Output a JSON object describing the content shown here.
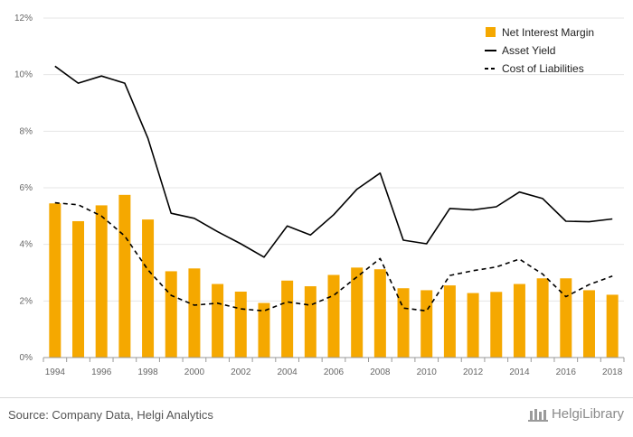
{
  "chart_data": {
    "type": "bar+line",
    "x": [
      1994,
      1995,
      1996,
      1997,
      1998,
      1999,
      2000,
      2001,
      2002,
      2003,
      2004,
      2005,
      2006,
      2007,
      2008,
      2009,
      2010,
      2011,
      2012,
      2013,
      2014,
      2015,
      2016,
      2017,
      2018
    ],
    "x_tick_labels": [
      "1994",
      "1996",
      "1998",
      "2000",
      "2002",
      "2004",
      "2006",
      "2008",
      "2010",
      "2012",
      "2014",
      "2016",
      "2018"
    ],
    "y_tick_labels": [
      "0%",
      "2%",
      "4%",
      "6%",
      "8%",
      "10%",
      "12%"
    ],
    "ylim": [
      0,
      12
    ],
    "grid": "horizontal",
    "legend_position": "top-right",
    "series": [
      {
        "name": "Net Interest Margin",
        "kind": "bar",
        "color": "#f5a800",
        "values": [
          5.45,
          4.82,
          5.38,
          5.75,
          4.88,
          3.05,
          3.15,
          2.6,
          2.33,
          1.93,
          2.72,
          2.52,
          2.92,
          3.18,
          3.12,
          2.45,
          2.38,
          2.55,
          2.28,
          2.32,
          2.6,
          2.8,
          2.8,
          2.38,
          2.22
        ]
      },
      {
        "name": "Asset Yield",
        "kind": "line",
        "color": "#000000",
        "dash": "solid",
        "values": [
          10.3,
          9.7,
          9.95,
          9.7,
          7.75,
          5.1,
          4.92,
          4.45,
          4.02,
          3.55,
          4.65,
          4.33,
          5.05,
          5.95,
          6.52,
          4.15,
          4.02,
          5.27,
          5.22,
          5.33,
          5.85,
          5.62,
          4.82,
          4.8,
          4.9
        ]
      },
      {
        "name": "Cost of Liabilities",
        "kind": "line",
        "color": "#000000",
        "dash": "dashed",
        "values": [
          5.47,
          5.4,
          5.0,
          4.3,
          3.1,
          2.2,
          1.85,
          1.92,
          1.72,
          1.65,
          1.97,
          1.85,
          2.2,
          2.85,
          3.5,
          1.75,
          1.65,
          2.9,
          3.07,
          3.2,
          3.48,
          2.95,
          2.15,
          2.58,
          2.88
        ]
      }
    ]
  },
  "footer": {
    "source": "Source: Company Data, Helgi Analytics",
    "brand": "HelgiLibrary"
  }
}
